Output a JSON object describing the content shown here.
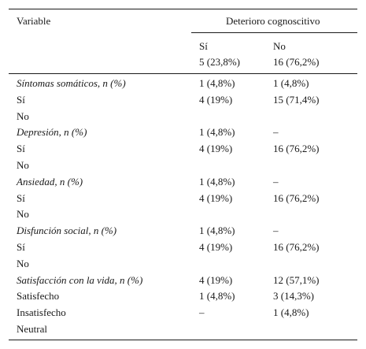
{
  "header": {
    "variable": "Variable",
    "group": "Deterioro cognoscitivo",
    "col_si": "Sí",
    "col_no": "No",
    "n_si": "5 (23,8%)",
    "n_no": "16 (76,2%)"
  },
  "rows": [
    {
      "label": "Síntomas somáticos, n (%)",
      "si": "1 (4,8%)",
      "no": "1 (4,8%)"
    },
    {
      "label": "Sí",
      "si": "4 (19%)",
      "no": "15 (71,4%)"
    },
    {
      "label": "No",
      "si": "",
      "no": ""
    },
    {
      "label": "Depresión, n (%)",
      "si": "1 (4,8%)",
      "no": "–"
    },
    {
      "label": "Sí",
      "si": "4 (19%)",
      "no": "16 (76,2%)"
    },
    {
      "label": "No",
      "si": "",
      "no": ""
    },
    {
      "label": "Ansiedad, n (%)",
      "si": "1 (4,8%)",
      "no": "–"
    },
    {
      "label": "Sí",
      "si": "4 (19%)",
      "no": "16 (76,2%)"
    },
    {
      "label": "No",
      "si": "",
      "no": ""
    },
    {
      "label": "Disfunción social, n (%)",
      "si": "1 (4,8%)",
      "no": "–"
    },
    {
      "label": "Sí",
      "si": "4 (19%)",
      "no": "16 (76,2%)"
    },
    {
      "label": "No",
      "si": "",
      "no": ""
    },
    {
      "label": "Satisfacción con la vida, n (%)",
      "si": "4 (19%)",
      "no": "12 (57,1%)"
    },
    {
      "label": "Satisfecho",
      "si": "1 (4,8%)",
      "no": "3 (14,3%)"
    },
    {
      "label": "Insatisfecho",
      "si": "–",
      "no": "1 (4,8%)"
    },
    {
      "label": "Neutral",
      "si": "",
      "no": ""
    }
  ]
}
